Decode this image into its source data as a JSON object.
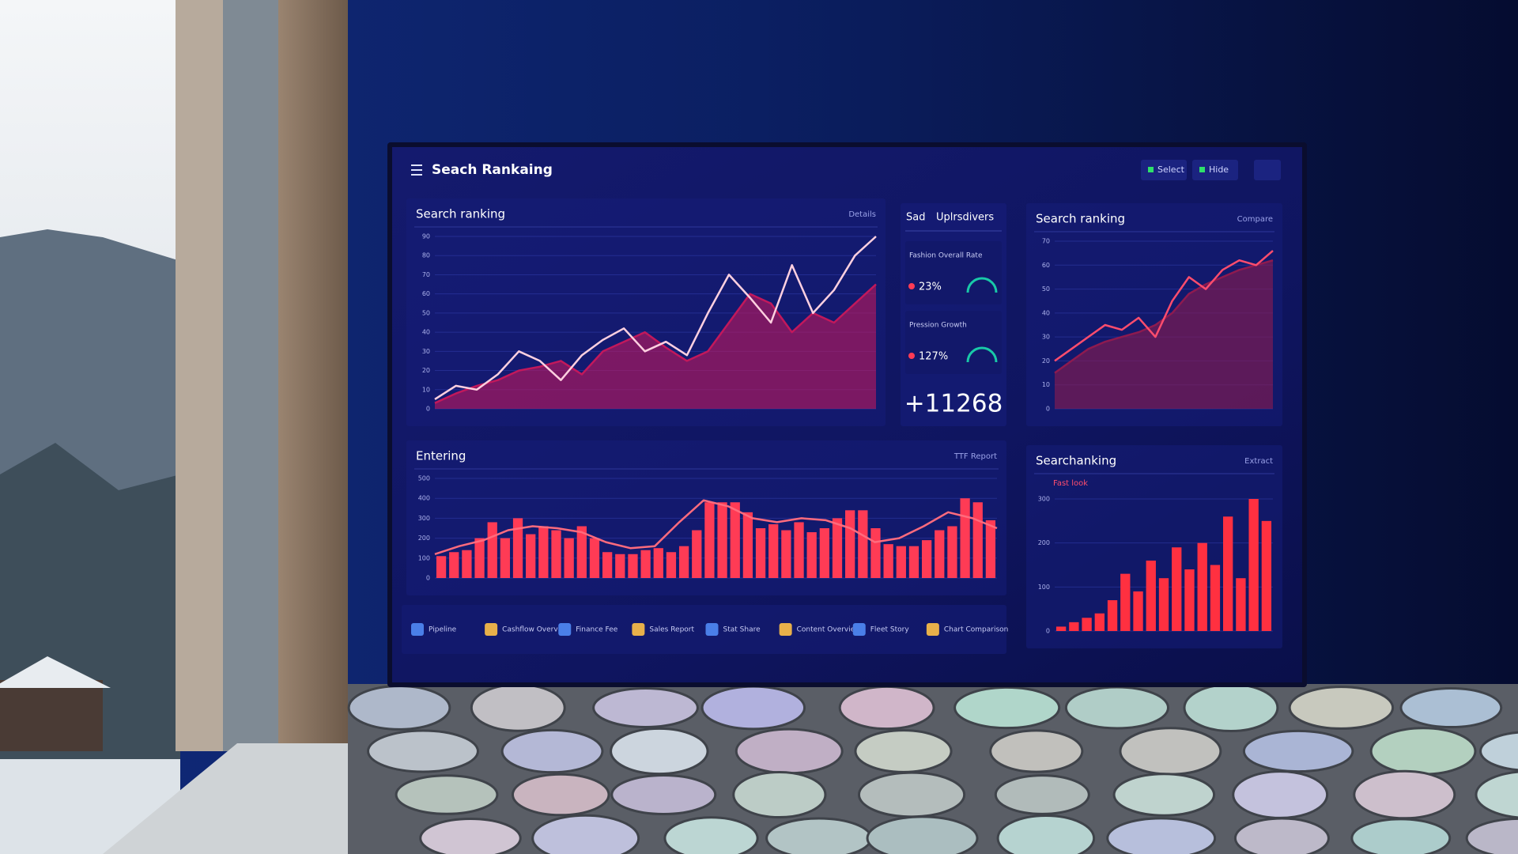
{
  "header": {
    "title": "Seach Rankaing",
    "buttons": [
      "Select",
      "Hide"
    ]
  },
  "panels": [
    {
      "title": "Search ranking",
      "link": "Details",
      "chart": {
        "ylim": [
          0,
          90
        ],
        "yticks": [
          0,
          10,
          20,
          30,
          40,
          50,
          60,
          70,
          80,
          90
        ],
        "series": [
          {
            "kind": "area",
            "color": "#c2185b",
            "values": [
              3,
              8,
              12,
              15,
              20,
              22,
              25,
              18,
              30,
              35,
              40,
              32,
              25,
              30,
              45,
              60,
              55,
              40,
              50,
              45,
              55,
              65
            ]
          },
          {
            "kind": "line",
            "color": "#ffd0e0",
            "values": [
              5,
              12,
              10,
              18,
              30,
              25,
              15,
              28,
              36,
              42,
              30,
              35,
              28,
              50,
              70,
              58,
              45,
              75,
              50,
              62,
              80,
              90
            ]
          }
        ]
      }
    },
    {
      "title": "Search ranking",
      "link": "Compare",
      "chart": {
        "ylim": [
          0,
          70
        ],
        "yticks": [
          0,
          10,
          20,
          30,
          40,
          50,
          60,
          70
        ],
        "series": [
          {
            "kind": "area",
            "color": "#8e1a4f",
            "values": [
              15,
              20,
              25,
              28,
              30,
              32,
              35,
              40,
              48,
              52,
              55,
              58,
              60,
              62
            ]
          },
          {
            "kind": "line",
            "color": "#ff4d6d",
            "values": [
              20,
              25,
              30,
              35,
              33,
              38,
              30,
              45,
              55,
              50,
              58,
              62,
              60,
              66
            ]
          }
        ]
      }
    },
    {
      "title": "Entering",
      "link": "TTF Report",
      "chart": {
        "ylim": [
          0,
          500
        ],
        "yticks": [
          0,
          100,
          200,
          300,
          400,
          500
        ],
        "series": [
          {
            "kind": "bar",
            "color": "#ff3b55",
            "values": [
              110,
              130,
              140,
              200,
              280,
              200,
              300,
              220,
              260,
              240,
              200,
              260,
              200,
              130,
              120,
              120,
              140,
              150,
              130,
              160,
              240,
              380,
              380,
              380,
              330,
              250,
              270,
              240,
              280,
              230,
              250,
              300,
              340,
              340,
              250,
              170,
              160,
              160,
              190,
              240,
              260,
              400,
              380,
              290
            ]
          },
          {
            "kind": "line",
            "color": "#ff6b7d",
            "values": [
              120,
              160,
              190,
              240,
              260,
              250,
              230,
              180,
              150,
              160,
              280,
              390,
              360,
              300,
              280,
              300,
              290,
              250,
              180,
              200,
              260,
              330,
              300,
              250
            ]
          }
        ]
      }
    },
    {
      "title": "Searchanking",
      "link": "Extract",
      "subtitle": "Fast look",
      "chart": {
        "ylim": [
          0,
          300
        ],
        "yticks": [
          0,
          100,
          200,
          300
        ],
        "series": [
          {
            "kind": "bar",
            "color": "#ff3040",
            "values": [
              10,
              20,
              30,
              40,
              70,
              130,
              90,
              160,
              120,
              190,
              140,
              200,
              150,
              260,
              120,
              300,
              250
            ]
          }
        ]
      }
    }
  ],
  "kpi": {
    "tabs": [
      "Sad",
      "Uplrsdivers"
    ],
    "cards": [
      {
        "label": "Fashion Overall Rate",
        "value": "23%"
      },
      {
        "label": "Pression Growth",
        "value": "127%"
      }
    ],
    "total": "+11268"
  },
  "footer": [
    "Pipeline",
    "Cashflow Overview",
    "Finance Fee",
    "Sales Report",
    "Stat Share",
    "Content Overview",
    "Fleet Story",
    "Chart Comparison"
  ]
}
